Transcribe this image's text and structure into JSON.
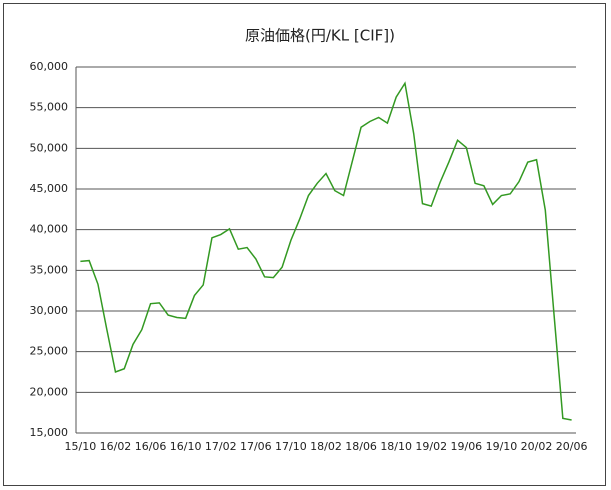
{
  "chart_data": {
    "type": "line",
    "title": "原油価格(円/KL [CIF])",
    "categories": [
      "15/10",
      null,
      null,
      null,
      "16/02",
      null,
      null,
      null,
      "16/06",
      null,
      null,
      null,
      "16/10",
      null,
      null,
      null,
      "17/02",
      null,
      null,
      null,
      "17/06",
      null,
      null,
      null,
      "17/10",
      null,
      null,
      null,
      "18/02",
      null,
      null,
      null,
      "18/06",
      null,
      null,
      null,
      "18/10",
      null,
      null,
      null,
      "19/02",
      null,
      null,
      null,
      "19/06",
      null,
      null,
      null,
      "19/10",
      null,
      null,
      null,
      "20/02",
      null,
      null,
      null,
      "20/06"
    ],
    "series": [
      {
        "color": "#339922",
        "values": [
          36100,
          36200,
          33300,
          27800,
          22500,
          22900,
          25900,
          27700,
          30900,
          31000,
          29500,
          29200,
          29100,
          31900,
          33200,
          39000,
          39400,
          40100,
          37600,
          37800,
          36400,
          34200,
          34100,
          35400,
          38700,
          41300,
          44200,
          45700,
          46900,
          44800,
          44200,
          48400,
          52600,
          53300,
          53800,
          53100,
          56300,
          58000,
          51800,
          43200,
          42900,
          45800,
          48300,
          51000,
          50100,
          45700,
          45400,
          43100,
          44200,
          44400,
          45900,
          48300,
          48600,
          42400,
          29500,
          16800,
          16600
        ]
      }
    ],
    "ylim": [
      15000,
      60000
    ],
    "yticks": [
      {
        "value": 15000,
        "label": "15,000"
      },
      {
        "value": 20000,
        "label": "20,000"
      },
      {
        "value": 25000,
        "label": "25,000"
      },
      {
        "value": 30000,
        "label": "30,000"
      },
      {
        "value": 35000,
        "label": "35,000"
      },
      {
        "value": 40000,
        "label": "40,000"
      },
      {
        "value": 45000,
        "label": "45,000"
      },
      {
        "value": 50000,
        "label": "50,000"
      },
      {
        "value": 55000,
        "label": "55,000"
      },
      {
        "value": 60000,
        "label": "60,000"
      }
    ],
    "grid": true
  }
}
